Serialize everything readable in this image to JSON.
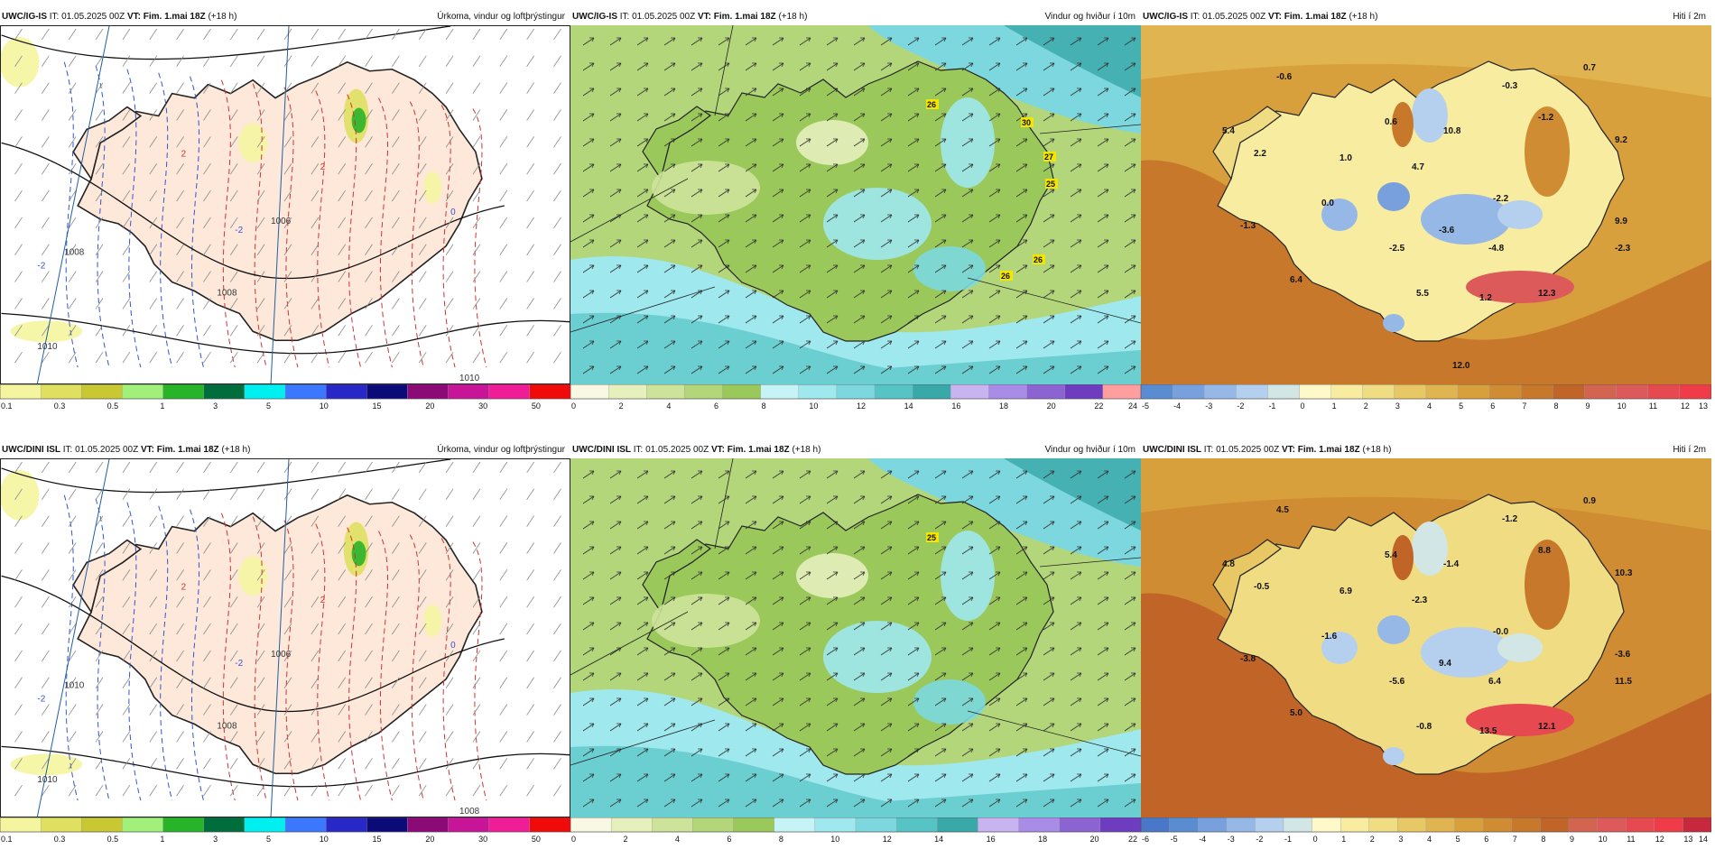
{
  "panels": [
    {
      "id": "igis-precip",
      "model": "UWC/IG-IS",
      "it": "IT: 01.05.2025 00Z",
      "vt_label": "VT:",
      "vt": "Fim. 1.mai 18Z",
      "lead": "(+18 h)",
      "field": "Úrkoma, vindur og loftþrýstingur",
      "kind": "precip",
      "colors": [
        "#f5f5a0",
        "#e0e060",
        "#c8c832",
        "#a0f07a",
        "#28b428",
        "#006e3c",
        "#00f0f0",
        "#3c78ff",
        "#2828c8",
        "#0a0a78",
        "#8c0a78",
        "#c81496",
        "#f01e96",
        "#f00a0a"
      ],
      "ticks": [
        "0.1",
        "0.3",
        "0.5",
        "1",
        "3",
        "5",
        "10",
        "15",
        "20",
        "30",
        "50"
      ],
      "isobars": [
        "1010",
        "1008",
        "1006",
        "1010",
        "1008"
      ],
      "temps": [
        "2",
        "0",
        "-2",
        "-2",
        "2"
      ]
    },
    {
      "id": "igis-wind",
      "model": "UWC/IG-IS",
      "it": "IT: 01.05.2025 00Z",
      "vt_label": "VT:",
      "vt": "Fim. 1.mai 18Z",
      "lead": "(+18 h)",
      "field": "Vindur og hviður í 10m",
      "kind": "wind",
      "colors": [
        "#f8f8e4",
        "#e6f0bc",
        "#cde39a",
        "#b3d67a",
        "#9bc85a",
        "#c6f4f6",
        "#9ee8ee",
        "#7cd8de",
        "#56c4c4",
        "#38a8a8",
        "#c8b4f0",
        "#a88ce6",
        "#8c64d2",
        "#6e3cbe",
        "#ff9e9e"
      ],
      "ticks": [
        "0",
        "2",
        "4",
        "6",
        "8",
        "10",
        "12",
        "14",
        "16",
        "18",
        "20",
        "22",
        "24"
      ],
      "gusts": [
        "26",
        "30",
        "27",
        "25",
        "26",
        "26"
      ]
    },
    {
      "id": "igis-temp",
      "model": "UWC/IG-IS",
      "it": "IT: 01.05.2025 00Z",
      "vt_label": "VT:",
      "vt": "Fim. 1.mai 18Z",
      "lead": "(+18 h)",
      "field": "Hiti í 2m",
      "kind": "temp",
      "colors": [
        "#5a8cd2",
        "#78a0dc",
        "#96b8e6",
        "#b4d0ee",
        "#d2e6e6",
        "#fff8c8",
        "#f8eca0",
        "#f0dc82",
        "#e8c864",
        "#e0b450",
        "#d8a03c",
        "#d08c32",
        "#c8782a",
        "#c06428",
        "#d26450",
        "#dc5a5a",
        "#e64a50",
        "#f03c48"
      ],
      "ticks": [
        "-5",
        "-4",
        "-3",
        "-2",
        "-1",
        "0",
        "1",
        "2",
        "3",
        "4",
        "5",
        "6",
        "7",
        "8",
        "9",
        "10",
        "11",
        "12",
        "13"
      ],
      "values": [
        "-0.6",
        "0.7",
        "-0.3",
        "5.4",
        "2.2",
        "0.6",
        "10.8",
        "-1.2",
        "9.2",
        "1.0",
        "4.7",
        "0.0",
        "-2.2",
        "9.9",
        "-1.3",
        "-2.5",
        "-3.6",
        "-4.8",
        "-2.3",
        "6.4",
        "5.5",
        "1.2",
        "12.3",
        "12.0"
      ]
    },
    {
      "id": "dini-precip",
      "model": "UWC/DINI ISL",
      "it": "IT: 01.05.2025 00Z",
      "vt_label": "VT:",
      "vt": "Fim. 1.mai 18Z",
      "lead": "(+18 h)",
      "field": "Úrkoma, vindur og loftþrýstingur",
      "kind": "precip",
      "colors": [
        "#f5f5a0",
        "#e0e060",
        "#c8c832",
        "#a0f07a",
        "#28b428",
        "#006e3c",
        "#00f0f0",
        "#3c78ff",
        "#2828c8",
        "#0a0a78",
        "#8c0a78",
        "#c81496",
        "#f01e96",
        "#f00a0a"
      ],
      "ticks": [
        "0.1",
        "0.3",
        "0.5",
        "1",
        "3",
        "5",
        "10",
        "15",
        "20",
        "30",
        "50"
      ],
      "isobars": [
        "1010",
        "1008",
        "1006",
        "1008",
        "1010"
      ],
      "temps": [
        "2",
        "0",
        "-2",
        "-2",
        "2"
      ]
    },
    {
      "id": "dini-wind",
      "model": "UWC/DINI ISL",
      "it": "IT: 01.05.2025 00Z",
      "vt_label": "VT:",
      "vt": "Fim. 1.mai 18Z",
      "lead": "(+18 h)",
      "field": "Vindur og hviður í 10m",
      "kind": "wind",
      "colors": [
        "#f8f8e4",
        "#e6f0bc",
        "#cde39a",
        "#b3d67a",
        "#9bc85a",
        "#c6f4f6",
        "#9ee8ee",
        "#7cd8de",
        "#56c4c4",
        "#38a8a8",
        "#c8b4f0",
        "#a88ce6",
        "#8c64d2",
        "#6e3cbe"
      ],
      "ticks": [
        "0",
        "2",
        "4",
        "6",
        "8",
        "10",
        "12",
        "14",
        "16",
        "18",
        "20",
        "22"
      ],
      "gusts": [
        "25"
      ]
    },
    {
      "id": "dini-temp",
      "model": "UWC/DINI ISL",
      "it": "IT: 01.05.2025 00Z",
      "vt_label": "VT:",
      "vt": "Fim. 1.mai 18Z",
      "lead": "(+18 h)",
      "field": "Hiti í 2m",
      "kind": "temp",
      "colors": [
        "#4a78c8",
        "#5a8cd2",
        "#78a0dc",
        "#96b8e6",
        "#b4d0ee",
        "#d2e6e6",
        "#fff8c8",
        "#f8eca0",
        "#f0dc82",
        "#e8c864",
        "#e0b450",
        "#d8a03c",
        "#d08c32",
        "#c8782a",
        "#c06428",
        "#d26450",
        "#dc5a5a",
        "#e64a50",
        "#f03c48",
        "#c8283c"
      ],
      "ticks": [
        "-6",
        "-5",
        "-4",
        "-3",
        "-2",
        "-1",
        "0",
        "1",
        "2",
        "3",
        "4",
        "5",
        "6",
        "7",
        "8",
        "9",
        "10",
        "11",
        "12",
        "13",
        "14"
      ],
      "values": [
        "4.5",
        "0.9",
        "-1.2",
        "4.8",
        "-0.5",
        "5.4",
        "-1.4",
        "8.8",
        "10.3",
        "6.9",
        "-2.3",
        "-1.6",
        "-0.0",
        "-3.6",
        "-3.8",
        "-5.6",
        "9.4",
        "6.4",
        "11.5",
        "5.0",
        "-0.8",
        "13.5",
        "12.1"
      ]
    }
  ]
}
